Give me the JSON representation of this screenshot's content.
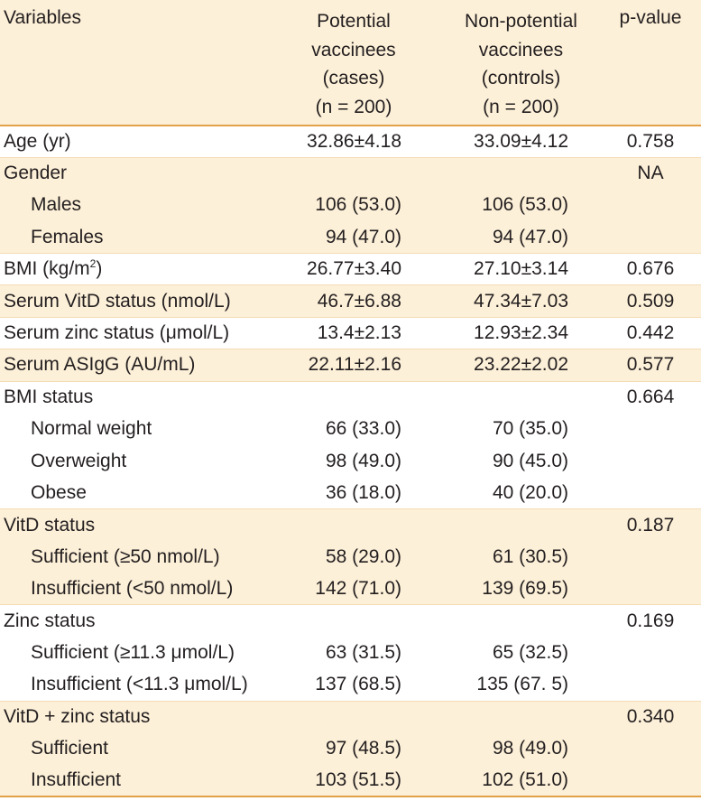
{
  "table": {
    "header": [
      [
        "Variables"
      ],
      [
        "Potential",
        "vaccinees",
        "(cases)",
        "(n = 200)"
      ],
      [
        "Non-potential",
        "vaccinees",
        "(controls)",
        "(n = 200)"
      ],
      [
        "p-value"
      ]
    ],
    "rows": [
      {
        "label": "Age (yr)",
        "cases": "32.86±4.18",
        "controls": "33.09±4.12",
        "p": "0.758"
      },
      {
        "label": "Gender",
        "p": "NA",
        "items": [
          {
            "label": "Males",
            "cases": "106 (53.0)",
            "controls": "106 (53.0)"
          },
          {
            "label": "Females",
            "cases": "94 (47.0)",
            "controls": "94 (47.0)"
          }
        ]
      },
      {
        "label": {
          "text": "BMI (kg/m",
          "sup": "2",
          "after": ")"
        },
        "cases": "26.77±3.40",
        "controls": "27.10±3.14",
        "p": "0.676"
      },
      {
        "label": "Serum VitD status (nmol/L)",
        "cases": "46.7±6.88",
        "controls": "47.34±7.03",
        "p": "0.509"
      },
      {
        "label": "Serum zinc status (μmol/L)",
        "cases": "13.4±2.13",
        "controls": "12.93±2.34",
        "p": "0.442"
      },
      {
        "label": "Serum ASIgG (AU/mL)",
        "cases": "22.11±2.16",
        "controls": "23.22±2.02",
        "p": "0.577"
      },
      {
        "label": "BMI status",
        "p": "0.664",
        "items": [
          {
            "label": "Normal weight",
            "cases": "66 (33.0)",
            "controls": "70 (35.0)"
          },
          {
            "label": "Overweight",
            "cases": "98 (49.0)",
            "controls": "90 (45.0)"
          },
          {
            "label": "Obese",
            "cases": "36 (18.0)",
            "controls": "40 (20.0)"
          }
        ]
      },
      {
        "label": "VitD status",
        "p": "0.187",
        "items": [
          {
            "label": "Sufficient (≥50 nmol/L)",
            "cases": "58 (29.0)",
            "controls": "61 (30.5)"
          },
          {
            "label": "Insufficient (<50 nmol/L)",
            "cases": "142 (71.0)",
            "controls": "139 (69.5)"
          }
        ]
      },
      {
        "label": "Zinc status",
        "p": "0.169",
        "items": [
          {
            "label": "Sufficient (≥11.3 μmol/L)",
            "cases": "63 (31.5)",
            "controls": "65 (32.5)"
          },
          {
            "label": "Insufficient (<11.3 μmol/L)",
            "cases": "137 (68.5)",
            "controls": "135 (67. 5)"
          }
        ]
      },
      {
        "label": "VitD + zinc status",
        "p": "0.340",
        "items": [
          {
            "label": "Sufficient",
            "cases": "97 (48.5)",
            "controls": "98 (49.0)"
          },
          {
            "label": "Insufficient",
            "cases": "103 (51.5)",
            "controls": "102 (51.0)"
          }
        ]
      }
    ]
  }
}
